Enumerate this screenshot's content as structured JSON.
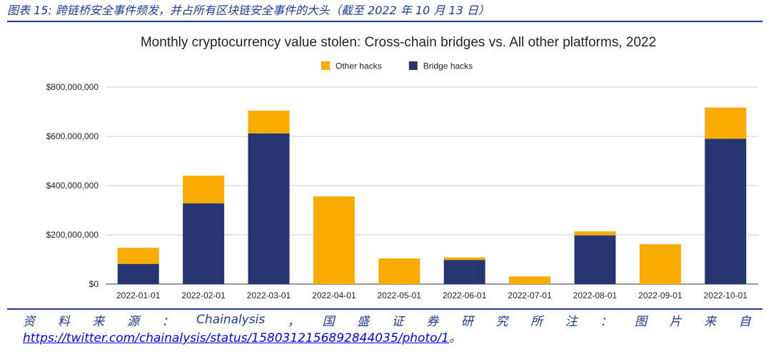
{
  "caption": "图表 15: 跨链桥安全事件频发，并占所有区块链安全事件的大头（截至 2022 年 10 月 13 日）",
  "source": {
    "tokens": [
      "资",
      "料",
      "来",
      "源",
      "：",
      "Chainalysis",
      "，",
      "国",
      "盛",
      "证",
      "券",
      "研",
      "究",
      "所",
      "注",
      "：",
      "图",
      "片",
      "来",
      "自"
    ],
    "link": "https://twitter.com/chainalysis/status/1580312156892844035/photo/1",
    "tail": "。"
  },
  "colors": {
    "other": "#f9ab00",
    "bridge": "#283573",
    "accent": "#1f3a93"
  },
  "chart_data": {
    "type": "bar",
    "stacked": true,
    "title": "Monthly cryptocurrency value stolen: Cross-chain bridges vs. All other platforms, 2022",
    "xlabel": "",
    "ylabel": "",
    "ylim": [
      0,
      800000000
    ],
    "yticks": [
      0,
      200000000,
      400000000,
      600000000,
      800000000
    ],
    "ytick_labels": [
      "$0",
      "$200,000,000",
      "$400,000,000",
      "$600,000,000",
      "$800,000,000"
    ],
    "grid": true,
    "legend_position": "top-center",
    "categories": [
      "2022-01-01",
      "2022-02-01",
      "2022-03-01",
      "2022-04-01",
      "2022-05-01",
      "2022-06-01",
      "2022-07-01",
      "2022-08-01",
      "2022-09-01",
      "2022-10-01"
    ],
    "series": [
      {
        "name": "Bridge hacks",
        "color": "#283573",
        "values": [
          82000000,
          328000000,
          612000000,
          0,
          0,
          98000000,
          0,
          198000000,
          0,
          590000000
        ]
      },
      {
        "name": "Other hacks",
        "color": "#f9ab00",
        "values": [
          65000000,
          112000000,
          92000000,
          356000000,
          104000000,
          10000000,
          31000000,
          16000000,
          162000000,
          127000000
        ]
      }
    ],
    "legend_order": [
      "Other hacks",
      "Bridge hacks"
    ]
  }
}
